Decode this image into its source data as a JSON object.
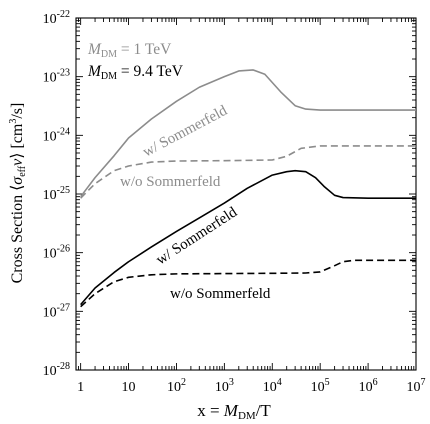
{
  "chart_data": {
    "type": "line",
    "xlabel": "x = M_DM/T",
    "ylabel": "Cross Section  ⟨σ_eff v⟩ [cm³/s]",
    "x_scale": "log",
    "y_scale": "log",
    "xlim": [
      0.8,
      10000000
    ],
    "ylim": [
      1e-28,
      1e-22
    ],
    "x_ticks": [
      1,
      10,
      100,
      1000,
      10000,
      100000,
      1000000,
      10000000
    ],
    "x_tick_labels": [
      "1",
      "10",
      "10^2",
      "10^3",
      "10^4",
      "10^5",
      "10^6",
      "10^7"
    ],
    "y_ticks": [
      1e-28,
      1e-27,
      1e-26,
      1e-25,
      1e-24,
      1e-23,
      1e-22
    ],
    "y_tick_labels": [
      "10^-28",
      "10^-27",
      "10^-26",
      "10^-25",
      "10^-24",
      "10^-23",
      "10^-22"
    ],
    "legend_entries": [
      {
        "mass": "1 TeV",
        "color": "#8c8c8c"
      },
      {
        "mass": "9.4 TeV",
        "color": "#000000"
      }
    ],
    "series": [
      {
        "color": "#8c8c8c",
        "dash": "solid",
        "label": "w/ Sommerfeld",
        "x": [
          1,
          2,
          5,
          10,
          30,
          100,
          300,
          1000,
          2000,
          4000,
          7000,
          15000,
          30000,
          50000,
          100000,
          10000000
        ],
        "y": [
          9e-26,
          1.9e-25,
          4.5e-25,
          9e-25,
          1.9e-24,
          3.8e-24,
          6.6e-24,
          1e-23,
          1.25e-23,
          1.3e-23,
          1.1e-23,
          5.5e-24,
          3.2e-24,
          2.8e-24,
          2.7e-24,
          2.7e-24
        ]
      },
      {
        "color": "#8c8c8c",
        "dash": "dashed",
        "label": "w/o Sommerfeld",
        "x": [
          1,
          2,
          5,
          10,
          30,
          100,
          1000,
          10000,
          20000,
          40000,
          100000,
          10000000
        ],
        "y": [
          8.5e-26,
          1.5e-25,
          2.5e-25,
          3e-25,
          3.5e-25,
          3.65e-25,
          3.7e-25,
          3.8e-25,
          4.4e-25,
          6e-25,
          6.6e-25,
          6.6e-25
        ]
      },
      {
        "color": "#000000",
        "dash": "solid",
        "label": "w/ Sommerfeld",
        "x": [
          1,
          2,
          5,
          10,
          30,
          100,
          300,
          1000,
          3000,
          10000,
          20000,
          30000,
          50000,
          80000,
          120000,
          200000,
          300000,
          1000000,
          10000000
        ],
        "y": [
          1.3e-27,
          2.5e-27,
          4.6e-27,
          7e-27,
          1.25e-26,
          2.3e-26,
          3.9e-26,
          7e-26,
          1.25e-25,
          2.1e-25,
          2.4e-25,
          2.5e-25,
          2.4e-25,
          1.9e-25,
          1.35e-25,
          9.5e-26,
          8.7e-26,
          8.5e-26,
          8.5e-26
        ]
      },
      {
        "color": "#000000",
        "dash": "dashed",
        "label": "w/o Sommerfeld",
        "x": [
          1,
          2,
          5,
          10,
          30,
          100,
          1000,
          10000,
          50000,
          100000,
          200000,
          300000,
          500000,
          10000000
        ],
        "y": [
          1.2e-27,
          2e-27,
          3.2e-27,
          3.8e-27,
          4.2e-27,
          4.35e-27,
          4.4e-27,
          4.45e-27,
          4.5e-27,
          4.7e-27,
          6e-27,
          7e-27,
          7.4e-27,
          7.4e-27
        ]
      }
    ]
  }
}
